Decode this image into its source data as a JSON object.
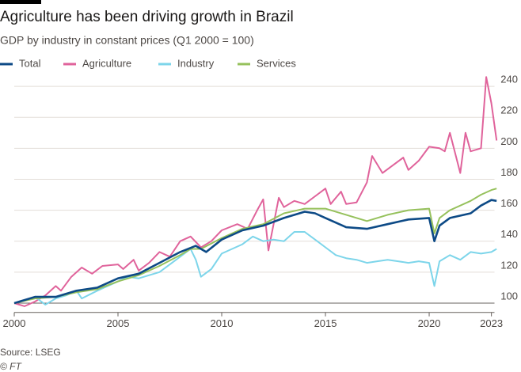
{
  "chart_data": {
    "type": "line",
    "title": "Agriculture has been driving growth in Brazil",
    "subtitle": "GDP by industry in constant prices (Q1 2000 = 100)",
    "source": "Source: LSEG",
    "credit": "© FT",
    "xlim": [
      2000,
      2023.3
    ],
    "xticks": [
      2000,
      2005,
      2010,
      2015,
      2020,
      2023
    ],
    "ylim": [
      94,
      250
    ],
    "yticks": [
      100,
      120,
      140,
      160,
      180,
      200,
      220,
      240
    ],
    "grid": true,
    "series": [
      {
        "name": "Total",
        "color": "#0d4a86",
        "x": [
          2000,
          2001,
          2002,
          2003,
          2004,
          2005,
          2006,
          2007,
          2008,
          2008.75,
          2009.25,
          2010,
          2011,
          2012,
          2013,
          2014,
          2014.5,
          2015,
          2016,
          2017,
          2018,
          2019,
          2020,
          2020.25,
          2020.5,
          2021,
          2022,
          2022.5,
          2023,
          2023.25
        ],
        "values": [
          100,
          104,
          104,
          108,
          110,
          116,
          119,
          126,
          133,
          137,
          133,
          141,
          147,
          150,
          155,
          159,
          158,
          155,
          149,
          148,
          151,
          154,
          155,
          140,
          150,
          155,
          158,
          163,
          166.6,
          166
        ]
      },
      {
        "name": "Agriculture",
        "color": "#e0639b",
        "x": [
          2000,
          2000.5,
          2001,
          2001.5,
          2002,
          2002.25,
          2002.75,
          2003.25,
          2003.75,
          2004.25,
          2005,
          2005.25,
          2005.75,
          2006,
          2006.5,
          2007,
          2007.5,
          2008,
          2008.5,
          2009,
          2009.5,
          2010,
          2010.75,
          2011.25,
          2011.75,
          2012,
          2012.25,
          2012.75,
          2013,
          2013.5,
          2014,
          2014.5,
          2015,
          2015.25,
          2015.75,
          2016,
          2016.5,
          2017,
          2017.25,
          2017.75,
          2018.25,
          2018.75,
          2019,
          2019.5,
          2020,
          2020.5,
          2020.75,
          2021,
          2021.5,
          2021.75,
          2022,
          2022.5,
          2022.75,
          2023,
          2023.25
        ],
        "values": [
          100,
          98,
          101,
          105,
          111,
          108,
          117,
          123,
          119,
          124,
          125,
          122,
          128,
          121,
          126,
          133,
          130,
          140,
          143,
          136,
          140,
          147,
          151,
          148,
          161,
          167,
          134,
          168,
          162,
          166,
          164,
          169,
          174,
          164,
          172,
          164,
          165,
          178,
          195,
          184,
          189,
          194,
          186,
          192,
          201,
          200,
          198,
          210,
          184,
          210,
          198,
          200,
          246,
          229,
          205
        ]
      },
      {
        "name": "Industry",
        "color": "#7dd5ea",
        "x": [
          2000,
          2001,
          2001.5,
          2002,
          2002.5,
          2003,
          2003.25,
          2004,
          2005,
          2005.5,
          2006,
          2007,
          2008,
          2008.5,
          2008.75,
          2009,
          2009.5,
          2010,
          2011,
          2011.5,
          2012,
          2012.5,
          2013,
          2013.5,
          2014,
          2014.5,
          2015,
          2015.5,
          2016,
          2016.5,
          2017,
          2017.5,
          2018,
          2018.5,
          2019,
          2019.5,
          2020,
          2020.25,
          2020.5,
          2021,
          2021.5,
          2022,
          2022.5,
          2023,
          2023.25
        ],
        "values": [
          100,
          104,
          99,
          103,
          105,
          108,
          103,
          108,
          114,
          117,
          116,
          120,
          130,
          135,
          128,
          117,
          122,
          132,
          138,
          143,
          140,
          141,
          140,
          146,
          146,
          141,
          136,
          131,
          129,
          128,
          126,
          127,
          128,
          127,
          126,
          127,
          126,
          111,
          127,
          131,
          128,
          133,
          132,
          133,
          135
        ]
      },
      {
        "name": "Services",
        "color": "#96c15c",
        "x": [
          2000,
          2001,
          2002,
          2003,
          2004,
          2005,
          2006,
          2007,
          2008,
          2008.5,
          2009,
          2010,
          2011,
          2012,
          2013,
          2014,
          2015,
          2016,
          2017,
          2018,
          2019,
          2020,
          2020.25,
          2020.5,
          2021,
          2022,
          2022.5,
          2023,
          2023.25
        ],
        "values": [
          100,
          103,
          104,
          107,
          109,
          114,
          118,
          124,
          131,
          135,
          135,
          142,
          148,
          151,
          158,
          161,
          161,
          157,
          153,
          157,
          160,
          161,
          145,
          155,
          160,
          166,
          170,
          173,
          174
        ]
      }
    ]
  }
}
